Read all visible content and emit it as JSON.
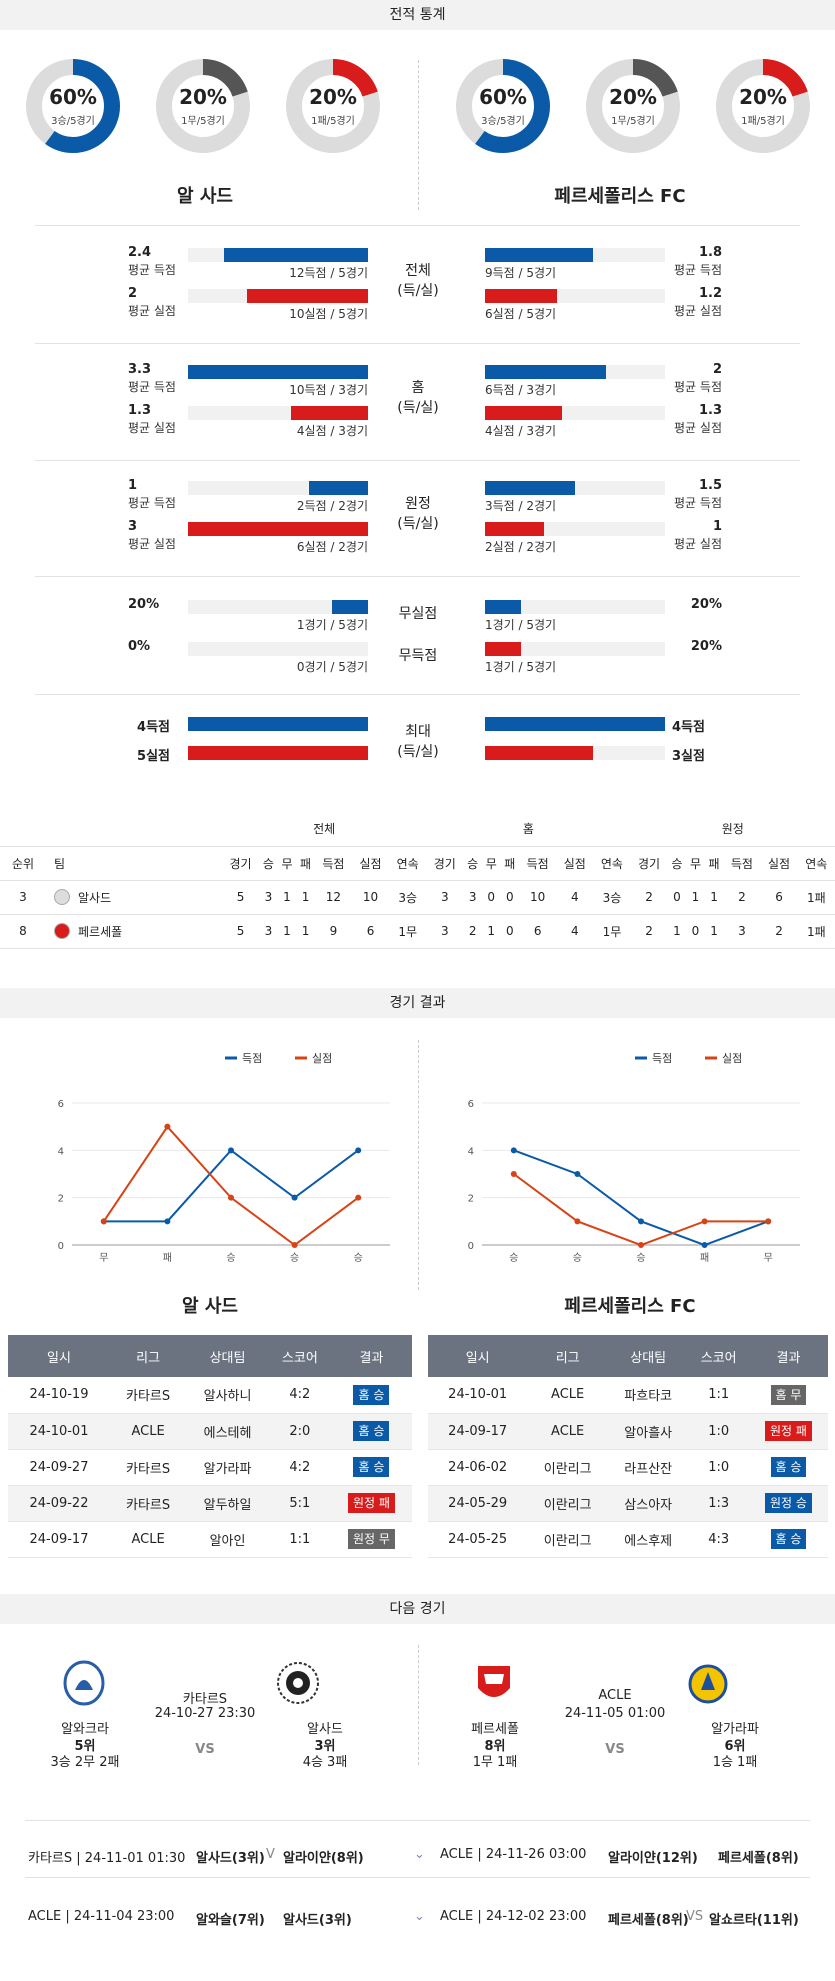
{
  "sections": {
    "stats": "전적 통계",
    "results": "경기 결과",
    "next": "다음 경기"
  },
  "colors": {
    "blue": "#0a5aa8",
    "red": "#d81b1b",
    "grey": "#555555"
  },
  "donuts": [
    {
      "pct": "60%",
      "sub": "3승/5경기",
      "value": 0.6,
      "color": "#0a5aa8"
    },
    {
      "pct": "20%",
      "sub": "1무/5경기",
      "value": 0.2,
      "color": "#555555"
    },
    {
      "pct": "20%",
      "sub": "1패/5경기",
      "value": 0.2,
      "color": "#d81b1b"
    },
    {
      "pct": "60%",
      "sub": "3승/5경기",
      "value": 0.6,
      "color": "#0a5aa8"
    },
    {
      "pct": "20%",
      "sub": "1무/5경기",
      "value": 0.2,
      "color": "#555555"
    },
    {
      "pct": "20%",
      "sub": "1패/5경기",
      "value": 0.2,
      "color": "#d81b1b"
    }
  ],
  "teams": {
    "home": "알 사드",
    "away": "페르세폴리스 FC"
  },
  "stats": [
    {
      "mid": [
        "전체",
        "(득/실)"
      ],
      "rows": [
        {
          "l_num": "2.4",
          "l_lbl": "평균 득점",
          "l_cap": "12득점 / 5경기",
          "l_frac": 0.8,
          "r_num": "1.8",
          "r_lbl": "평균 득점",
          "r_cap": "9득점 / 5경기",
          "r_frac": 0.6,
          "color": "blue"
        },
        {
          "l_num": "2",
          "l_lbl": "평균 실점",
          "l_cap": "10실점 / 5경기",
          "l_frac": 0.67,
          "r_num": "1.2",
          "r_lbl": "평균 실점",
          "r_cap": "6실점 / 5경기",
          "r_frac": 0.4,
          "color": "red"
        }
      ]
    },
    {
      "mid": [
        "홈",
        "(득/실)"
      ],
      "rows": [
        {
          "l_num": "3.3",
          "l_lbl": "평균 득점",
          "l_cap": "10득점 / 3경기",
          "l_frac": 1.0,
          "r_num": "2",
          "r_lbl": "평균 득점",
          "r_cap": "6득점 / 3경기",
          "r_frac": 0.67,
          "color": "blue"
        },
        {
          "l_num": "1.3",
          "l_lbl": "평균 실점",
          "l_cap": "4실점 / 3경기",
          "l_frac": 0.43,
          "r_num": "1.3",
          "r_lbl": "평균 실점",
          "r_cap": "4실점 / 3경기",
          "r_frac": 0.43,
          "color": "red"
        }
      ]
    },
    {
      "mid": [
        "원정",
        "(득/실)"
      ],
      "rows": [
        {
          "l_num": "1",
          "l_lbl": "평균 득점",
          "l_cap": "2득점 / 2경기",
          "l_frac": 0.33,
          "r_num": "1.5",
          "r_lbl": "평균 득점",
          "r_cap": "3득점 / 2경기",
          "r_frac": 0.5,
          "color": "blue"
        },
        {
          "l_num": "3",
          "l_lbl": "평균 실점",
          "l_cap": "6실점 / 2경기",
          "l_frac": 1.0,
          "r_num": "1",
          "r_lbl": "평균 실점",
          "r_cap": "2실점 / 2경기",
          "r_frac": 0.33,
          "color": "red"
        }
      ]
    }
  ],
  "clean": [
    {
      "mid": "무실점",
      "l_num": "20%",
      "l_cap": "1경기 / 5경기",
      "l_frac": 0.2,
      "r_num": "20%",
      "r_cap": "1경기 / 5경기",
      "r_frac": 0.2,
      "color": "blue"
    },
    {
      "mid": "무득점",
      "l_num": "0%",
      "l_cap": "0경기 / 5경기",
      "l_frac": 0.0,
      "r_num": "20%",
      "r_cap": "1경기 / 5경기",
      "r_frac": 0.2,
      "color": "red"
    }
  ],
  "maxes": {
    "mid": [
      "최대",
      "(득/실)"
    ],
    "rows": [
      {
        "l": "4득점",
        "r": "4득점",
        "l_frac": 1.0,
        "r_frac": 1.0,
        "color": "blue"
      },
      {
        "l": "5실점",
        "r": "3실점",
        "l_frac": 1.0,
        "r_frac": 0.6,
        "color": "red"
      }
    ]
  },
  "standings": {
    "groups": [
      "전체",
      "홈",
      "원정"
    ],
    "cols": [
      "순위",
      "팀"
    ],
    "sub": [
      "경기",
      "승",
      "무",
      "패",
      "득점",
      "실점",
      "연속"
    ],
    "rows": [
      {
        "rank": "3",
        "team": "알사드",
        "all": [
          "5",
          "3",
          "1",
          "1",
          "12",
          "10",
          "3승"
        ],
        "home": [
          "3",
          "3",
          "0",
          "0",
          "10",
          "4",
          "3승"
        ],
        "away": [
          "2",
          "0",
          "1",
          "1",
          "2",
          "6",
          "1패"
        ]
      },
      {
        "rank": "8",
        "team": "페르세폴",
        "all": [
          "5",
          "3",
          "1",
          "1",
          "9",
          "6",
          "1무"
        ],
        "home": [
          "3",
          "2",
          "1",
          "0",
          "6",
          "4",
          "1무"
        ],
        "away": [
          "2",
          "1",
          "0",
          "1",
          "3",
          "2",
          "1패"
        ]
      }
    ]
  },
  "chart_data": [
    {
      "type": "line",
      "title": "알 사드",
      "categories": [
        "무",
        "패",
        "승",
        "승",
        "승"
      ],
      "ylim": [
        0,
        6
      ],
      "yticks": [
        0,
        2,
        4,
        6
      ],
      "legend": "top-right",
      "series": [
        {
          "name": "득점",
          "values": [
            1,
            1,
            4,
            2,
            4
          ],
          "color": "#0a5aa8"
        },
        {
          "name": "실점",
          "values": [
            1,
            5,
            2,
            0,
            2
          ],
          "color": "#d84315"
        }
      ]
    },
    {
      "type": "line",
      "title": "페르세폴리스 FC",
      "categories": [
        "승",
        "승",
        "승",
        "패",
        "무"
      ],
      "ylim": [
        0,
        6
      ],
      "yticks": [
        0,
        2,
        4,
        6
      ],
      "legend": "top-right",
      "series": [
        {
          "name": "득점",
          "values": [
            4,
            3,
            1,
            0,
            1
          ],
          "color": "#0a5aa8"
        },
        {
          "name": "실점",
          "values": [
            3,
            1,
            0,
            1,
            1
          ],
          "color": "#d84315"
        }
      ]
    }
  ],
  "results": {
    "headers": [
      "일시",
      "리그",
      "상대팀",
      "스코어",
      "결과"
    ],
    "home": [
      [
        "24-10-19",
        "카타르S",
        "알사하니",
        "4:2",
        "홈 승",
        "blue"
      ],
      [
        "24-10-01",
        "ACLE",
        "에스테헤",
        "2:0",
        "홈 승",
        "blue"
      ],
      [
        "24-09-27",
        "카타르S",
        "알가라파",
        "4:2",
        "홈 승",
        "blue"
      ],
      [
        "24-09-22",
        "카타르S",
        "알두하일",
        "5:1",
        "원정 패",
        "red"
      ],
      [
        "24-09-17",
        "ACLE",
        "알아인",
        "1:1",
        "원정 무",
        "grey"
      ]
    ],
    "away": [
      [
        "24-10-01",
        "ACLE",
        "파흐타코",
        "1:1",
        "홈 무",
        "grey"
      ],
      [
        "24-09-17",
        "ACLE",
        "알아흘사",
        "1:0",
        "원정 패",
        "red"
      ],
      [
        "24-06-02",
        "이란리그",
        "라프산잔",
        "1:0",
        "홈 승",
        "blue"
      ],
      [
        "24-05-29",
        "이란리그",
        "삼스아자",
        "1:3",
        "원정 승",
        "blue"
      ],
      [
        "24-05-25",
        "이란리그",
        "에스후제",
        "4:3",
        "홈 승",
        "blue"
      ]
    ]
  },
  "next": [
    {
      "league": "카타르S",
      "time": "24-10-27 23:30",
      "vs": "VS",
      "a": {
        "name": "알와크라",
        "rank": "5위",
        "rec": "3승 2무 2패"
      },
      "b": {
        "name": "알사드",
        "rank": "3위",
        "rec": "4승 3패"
      }
    },
    {
      "league": "ACLE",
      "time": "24-11-05 01:00",
      "vs": "VS",
      "a": {
        "name": "페르세폴",
        "rank": "8위",
        "rec": "1무 1패"
      },
      "b": {
        "name": "알가라파",
        "rank": "6위",
        "rec": "1승 1패"
      }
    }
  ],
  "upcoming": [
    {
      "l_info": "카타르S | 24-11-01 01:30",
      "l_a": "알사드(3위)",
      "l_vs": "V",
      "l_b": "알라이얀(8위)",
      "r_info": "ACLE | 24-11-26 03:00",
      "r_a": "알라이얀(12위)",
      "r_b": "페르세폴(8위)"
    },
    {
      "l_info": "ACLE | 24-11-04 23:00",
      "l_a": "알와슬(7위)",
      "l_b": "알사드(3위)",
      "r_info": "ACLE | 24-12-02 23:00",
      "r_a": "페르세폴(8위)",
      "r_vs": "VS",
      "r_b": "알쇼르타(11위)"
    }
  ]
}
